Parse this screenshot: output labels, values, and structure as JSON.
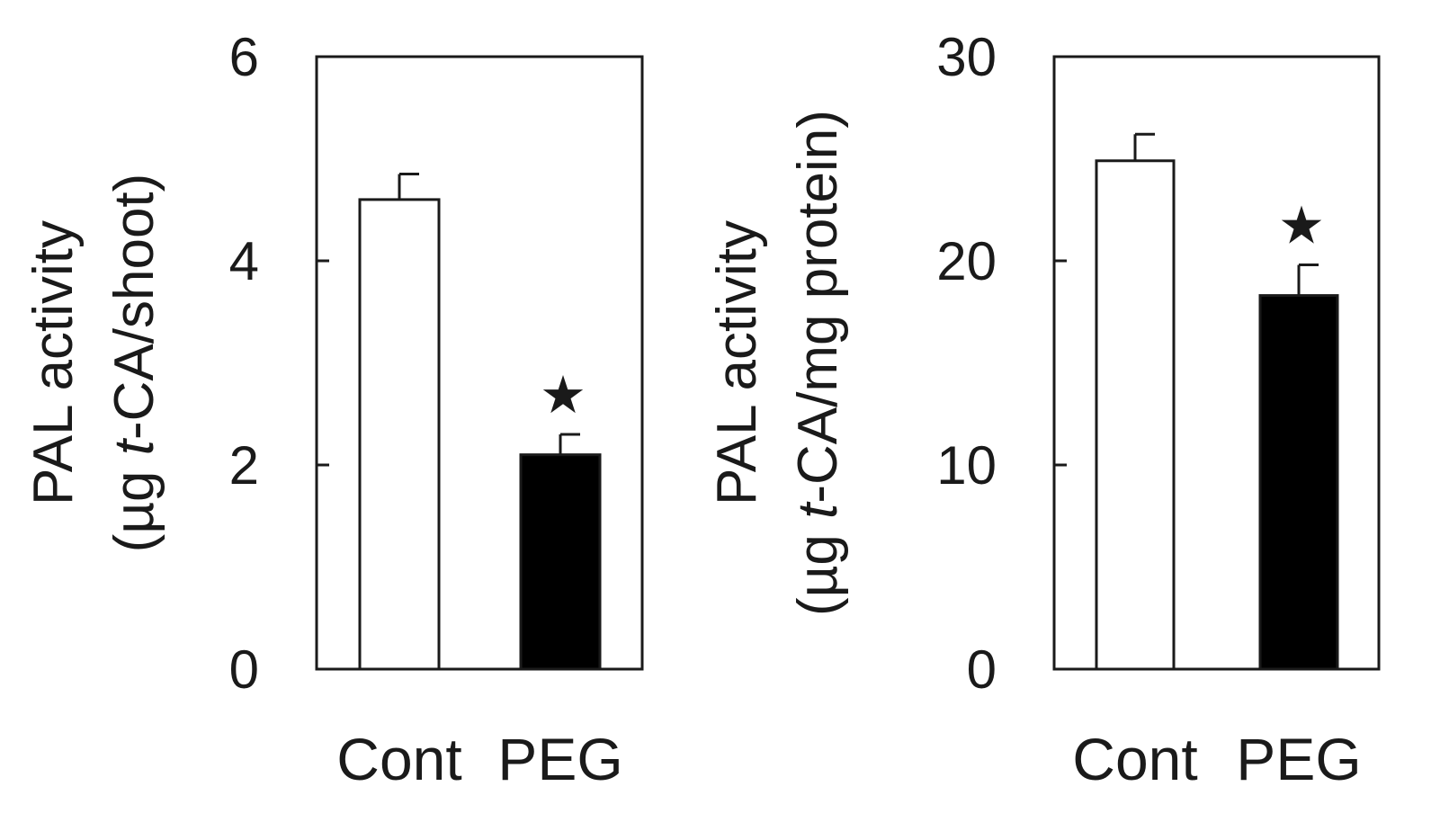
{
  "chart_data": [
    {
      "type": "bar",
      "categories": [
        "Cont",
        "PEG"
      ],
      "values": [
        4.6,
        2.1
      ],
      "errors": [
        0.25,
        0.2
      ],
      "significant": [
        false,
        true
      ],
      "significance_marker": "★",
      "bar_colors": [
        "#ffffff",
        "#000000"
      ],
      "ylabel_line1": "PAL activity",
      "ylabel_line2_pre": "(µg ",
      "ylabel_line2_italic": "t",
      "ylabel_line2_post": "-CA/shoot)",
      "ylim": [
        0,
        6
      ],
      "yticks": [
        0,
        2,
        4,
        6
      ],
      "ytick_labels": [
        "0",
        "2",
        "4",
        "6"
      ],
      "grid": false
    },
    {
      "type": "bar",
      "categories": [
        "Cont",
        "PEG"
      ],
      "values": [
        24.9,
        18.3
      ],
      "errors": [
        1.3,
        1.5
      ],
      "significant": [
        false,
        true
      ],
      "significance_marker": "★",
      "bar_colors": [
        "#ffffff",
        "#000000"
      ],
      "ylabel_line1": "PAL activity",
      "ylabel_line2_pre": "(µg ",
      "ylabel_line2_italic": "t",
      "ylabel_line2_post": "-CA/mg protein)",
      "ylim": [
        0,
        30
      ],
      "yticks": [
        0,
        10,
        20,
        30
      ],
      "ytick_labels": [
        "0",
        "10",
        "20",
        "30"
      ],
      "grid": false
    }
  ]
}
